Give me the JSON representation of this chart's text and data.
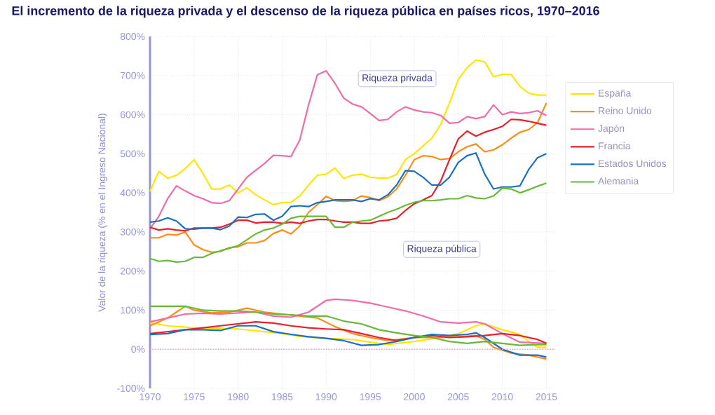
{
  "chart_data": {
    "type": "line",
    "title": "El incremento de la riqueza privada y el descenso de la riqueza pública en países ricos, 1970–2016",
    "ylabel": "Valor de la riqueza (% en el Ingreso Nacional)",
    "annotations": [
      "Riqueza privada",
      "Riqueza pública"
    ],
    "x": [
      1970,
      1971,
      1972,
      1973,
      1974,
      1975,
      1976,
      1977,
      1978,
      1979,
      1980,
      1981,
      1982,
      1983,
      1984,
      1985,
      1986,
      1987,
      1988,
      1989,
      1990,
      1991,
      1992,
      1993,
      1994,
      1995,
      1996,
      1997,
      1998,
      1999,
      2000,
      2001,
      2002,
      2003,
      2004,
      2005,
      2006,
      2007,
      2008,
      2009,
      2010,
      2011,
      2012,
      2013,
      2014,
      2015
    ],
    "xlim": [
      1970,
      2016
    ],
    "xticks": [
      1970,
      1975,
      1980,
      1985,
      1990,
      1995,
      2000,
      2005,
      2010,
      2015
    ],
    "ylim": [
      -100,
      800
    ],
    "yticks": [
      {
        "value": -100,
        "label": "-100%"
      },
      {
        "value": 0,
        "label": "0%"
      },
      {
        "value": 100,
        "label": "100%"
      },
      {
        "value": 200,
        "label": "200%"
      },
      {
        "value": 300,
        "label": "300%"
      },
      {
        "value": 400,
        "label": "400%"
      },
      {
        "value": 500,
        "label": "500%"
      },
      {
        "value": 600,
        "label": "600%"
      },
      {
        "value": 700,
        "label": "700%"
      },
      {
        "value": 800,
        "label": "800%"
      }
    ],
    "grid": true,
    "legend": "right",
    "ref_lines": [
      {
        "axis": "y",
        "value": 0,
        "color": "#f4a0b4",
        "line_style": "dotted"
      }
    ],
    "series": [
      {
        "name": "España",
        "color": "#ffe600",
        "values": [
          404,
          455,
          437,
          445,
          462,
          485,
          450,
          410,
          410,
          420,
          400,
          413,
          395,
          382,
          370,
          375,
          376,
          392,
          420,
          445,
          448,
          463,
          437,
          445,
          448,
          440,
          438,
          438,
          447,
          485,
          500,
          520,
          540,
          575,
          630,
          690,
          720,
          740,
          735,
          697,
          703,
          703,
          672,
          655,
          650,
          650
        ]
      },
      {
        "name": "Reino Unido",
        "color": "#ff8c1a",
        "values": [
          285,
          285,
          294,
          292,
          300,
          267,
          255,
          248,
          250,
          260,
          262,
          272,
          272,
          278,
          296,
          305,
          295,
          315,
          350,
          370,
          391,
          380,
          378,
          380,
          392,
          388,
          380,
          390,
          410,
          445,
          485,
          495,
          493,
          485,
          488,
          505,
          518,
          525,
          505,
          510,
          523,
          540,
          555,
          562,
          580,
          630
        ]
      },
      {
        "name": "Japón",
        "color": "#f06ba8",
        "values": [
          308,
          340,
          385,
          418,
          405,
          393,
          385,
          375,
          373,
          380,
          410,
          440,
          458,
          475,
          496,
          495,
          493,
          535,
          625,
          702,
          712,
          680,
          642,
          627,
          620,
          603,
          585,
          588,
          607,
          620,
          612,
          607,
          605,
          598,
          578,
          580,
          595,
          590,
          595,
          625,
          600,
          607,
          603,
          605,
          610,
          598
        ]
      },
      {
        "name": "Francia",
        "color": "#e8202a",
        "values": [
          312,
          305,
          308,
          305,
          303,
          310,
          310,
          310,
          312,
          320,
          330,
          330,
          323,
          325,
          325,
          322,
          325,
          322,
          328,
          332,
          332,
          328,
          325,
          325,
          322,
          322,
          328,
          330,
          335,
          355,
          372,
          382,
          393,
          430,
          485,
          538,
          558,
          545,
          555,
          562,
          570,
          588,
          587,
          583,
          578,
          573
        ]
      },
      {
        "name": "Estados Unidos",
        "color": "#1a6fc0",
        "values": [
          325,
          328,
          336,
          328,
          308,
          307,
          310,
          310,
          306,
          315,
          338,
          337,
          345,
          346,
          330,
          340,
          365,
          367,
          365,
          375,
          378,
          382,
          382,
          382,
          378,
          385,
          382,
          395,
          420,
          457,
          455,
          440,
          420,
          420,
          440,
          478,
          495,
          502,
          448,
          410,
          415,
          415,
          418,
          460,
          490,
          500
        ]
      },
      {
        "name": "Alemania",
        "color": "#6ab83a",
        "values": [
          232,
          225,
          227,
          223,
          225,
          235,
          235,
          245,
          252,
          258,
          265,
          280,
          295,
          305,
          310,
          320,
          335,
          340,
          340,
          340,
          340,
          312,
          312,
          325,
          328,
          330,
          340,
          350,
          358,
          368,
          376,
          380,
          380,
          382,
          385,
          385,
          393,
          387,
          385,
          392,
          412,
          410,
          400,
          408,
          417,
          425
        ]
      },
      {
        "color": "#ffe600",
        "x": [
          1970,
          1972,
          1975,
          1980,
          1983,
          1985,
          1987,
          1990,
          1993,
          1995,
          1997,
          2000,
          2003,
          2005,
          2007,
          2008,
          2010,
          2012,
          2013,
          2014,
          2015
        ],
        "values": [
          68,
          60,
          55,
          52,
          45,
          40,
          33,
          28,
          25,
          18,
          12,
          20,
          30,
          40,
          60,
          65,
          50,
          38,
          20,
          5,
          5
        ]
      },
      {
        "color": "#ff8c1a",
        "x": [
          1970,
          1972,
          1974,
          1975,
          1977,
          1979,
          1981,
          1983,
          1985,
          1987,
          1989,
          1991,
          1993,
          1995,
          1997,
          2000,
          2003,
          2005,
          2007,
          2008,
          2009,
          2011,
          2013,
          2015
        ],
        "values": [
          60,
          80,
          110,
          100,
          93,
          95,
          105,
          95,
          90,
          85,
          80,
          58,
          40,
          30,
          22,
          30,
          30,
          32,
          35,
          25,
          5,
          -10,
          -15,
          -25
        ]
      },
      {
        "color": "#f06ba8",
        "x": [
          1970,
          1972,
          1974,
          1976,
          1978,
          1980,
          1982,
          1984,
          1986,
          1988,
          1990,
          1991,
          1993,
          1995,
          1997,
          1999,
          2001,
          2003,
          2005,
          2007,
          2008,
          2010,
          2012,
          2015
        ],
        "values": [
          70,
          80,
          90,
          92,
          90,
          93,
          95,
          85,
          82,
          95,
          125,
          128,
          125,
          118,
          108,
          98,
          85,
          70,
          67,
          70,
          65,
          40,
          18,
          15
        ]
      },
      {
        "color": "#e8202a",
        "x": [
          1970,
          1972,
          1974,
          1976,
          1978,
          1980,
          1982,
          1984,
          1986,
          1988,
          1990,
          1992,
          1994,
          1996,
          1998,
          2000,
          2002,
          2004,
          2006,
          2008,
          2010,
          2012,
          2014,
          2015
        ],
        "values": [
          40,
          45,
          50,
          55,
          60,
          65,
          70,
          67,
          60,
          55,
          52,
          50,
          40,
          30,
          22,
          30,
          35,
          30,
          32,
          35,
          40,
          35,
          25,
          15
        ]
      },
      {
        "color": "#1a6fc0",
        "x": [
          1970,
          1972,
          1974,
          1976,
          1978,
          1980,
          1982,
          1984,
          1986,
          1988,
          1990,
          1992,
          1994,
          1996,
          1998,
          2000,
          2002,
          2004,
          2006,
          2007,
          2008,
          2010,
          2012,
          2014,
          2015
        ],
        "values": [
          38,
          40,
          50,
          50,
          48,
          60,
          60,
          45,
          38,
          32,
          28,
          22,
          10,
          12,
          20,
          30,
          38,
          35,
          38,
          42,
          30,
          0,
          -15,
          -15,
          -20
        ]
      },
      {
        "color": "#6ab83a",
        "x": [
          1970,
          1972,
          1974,
          1976,
          1978,
          1980,
          1982,
          1984,
          1986,
          1988,
          1990,
          1992,
          1994,
          1996,
          1998,
          2000,
          2002,
          2004,
          2006,
          2008,
          2010,
          2012,
          2014,
          2015
        ],
        "values": [
          110,
          110,
          110,
          100,
          98,
          98,
          95,
          90,
          88,
          85,
          85,
          72,
          65,
          50,
          42,
          35,
          30,
          20,
          15,
          20,
          15,
          10,
          12,
          12
        ]
      }
    ]
  }
}
